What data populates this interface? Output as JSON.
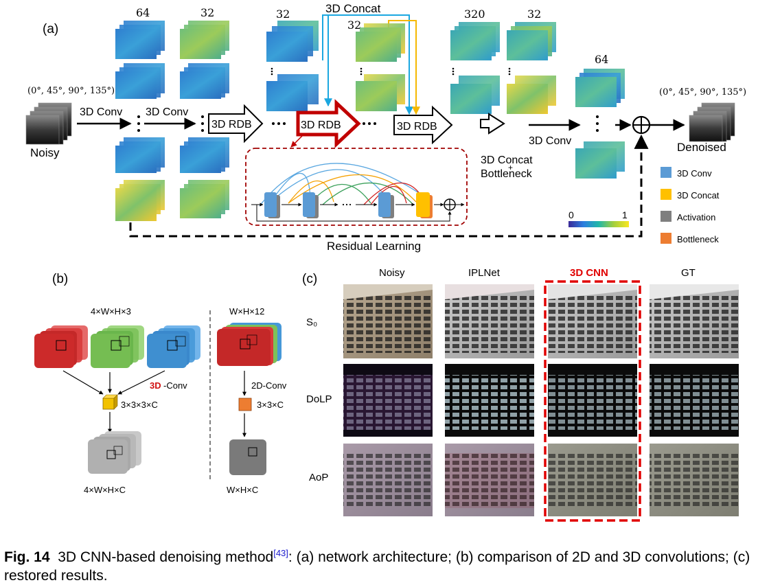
{
  "panel_a": {
    "label": "(a)",
    "input_angles": "(0°, 45°, 90°, 135°)",
    "output_angles": "(0°, 45°, 90°, 135°)",
    "input_label": "Noisy",
    "output_label": "Denoised",
    "conv1_label": "3D Conv",
    "conv2_label": "3D Conv",
    "conv3_label": "3D Conv",
    "rdb1_label": "3D RDB",
    "rdb2_label": "3D RDB",
    "rdb3_label": "3D RDB",
    "concat_top_label": "3D Concat",
    "concat_bottleneck_line1": "3D Concat",
    "concat_bottleneck_plus": "+",
    "concat_bottleneck_line2": "Bottleneck",
    "residual_label": "Residual Learning",
    "channels": [
      "64",
      "32",
      "32",
      "32",
      "320",
      "32",
      "64"
    ],
    "colorbar_min": "0",
    "colorbar_max": "1",
    "legend": [
      {
        "label": "3D Conv",
        "color": "#5b9bd5"
      },
      {
        "label": "3D Concat",
        "color": "#ffc000"
      },
      {
        "label": "Activation",
        "color": "#7f7f7f"
      },
      {
        "label": "Bottleneck",
        "color": "#ed7d31"
      }
    ]
  },
  "panel_b": {
    "label": "(b)",
    "left_top": "4×W×H×3",
    "left_conv_prefix": "3D",
    "left_conv_suffix": "-Conv",
    "left_kernel": "3×3×3×C",
    "left_bottom": "4×W×H×C",
    "right_top": "W×H×12",
    "right_conv": "2D-Conv",
    "right_kernel": "3×3×C",
    "right_bottom": "W×H×C"
  },
  "panel_c": {
    "label": "(c)",
    "columns": [
      "Noisy",
      "IPLNet",
      "3D CNN",
      "GT"
    ],
    "highlight_column": "3D CNN",
    "rows": [
      "S₀",
      "DoLP",
      "AoP"
    ]
  },
  "caption": {
    "fig": "Fig. 14",
    "text_before_ref": "3D CNN-based denoising method",
    "ref": "[43]",
    "text_after_ref": ": (a) network architecture; (b) comparison of 2D and 3D convolutions; (c) restored results."
  }
}
